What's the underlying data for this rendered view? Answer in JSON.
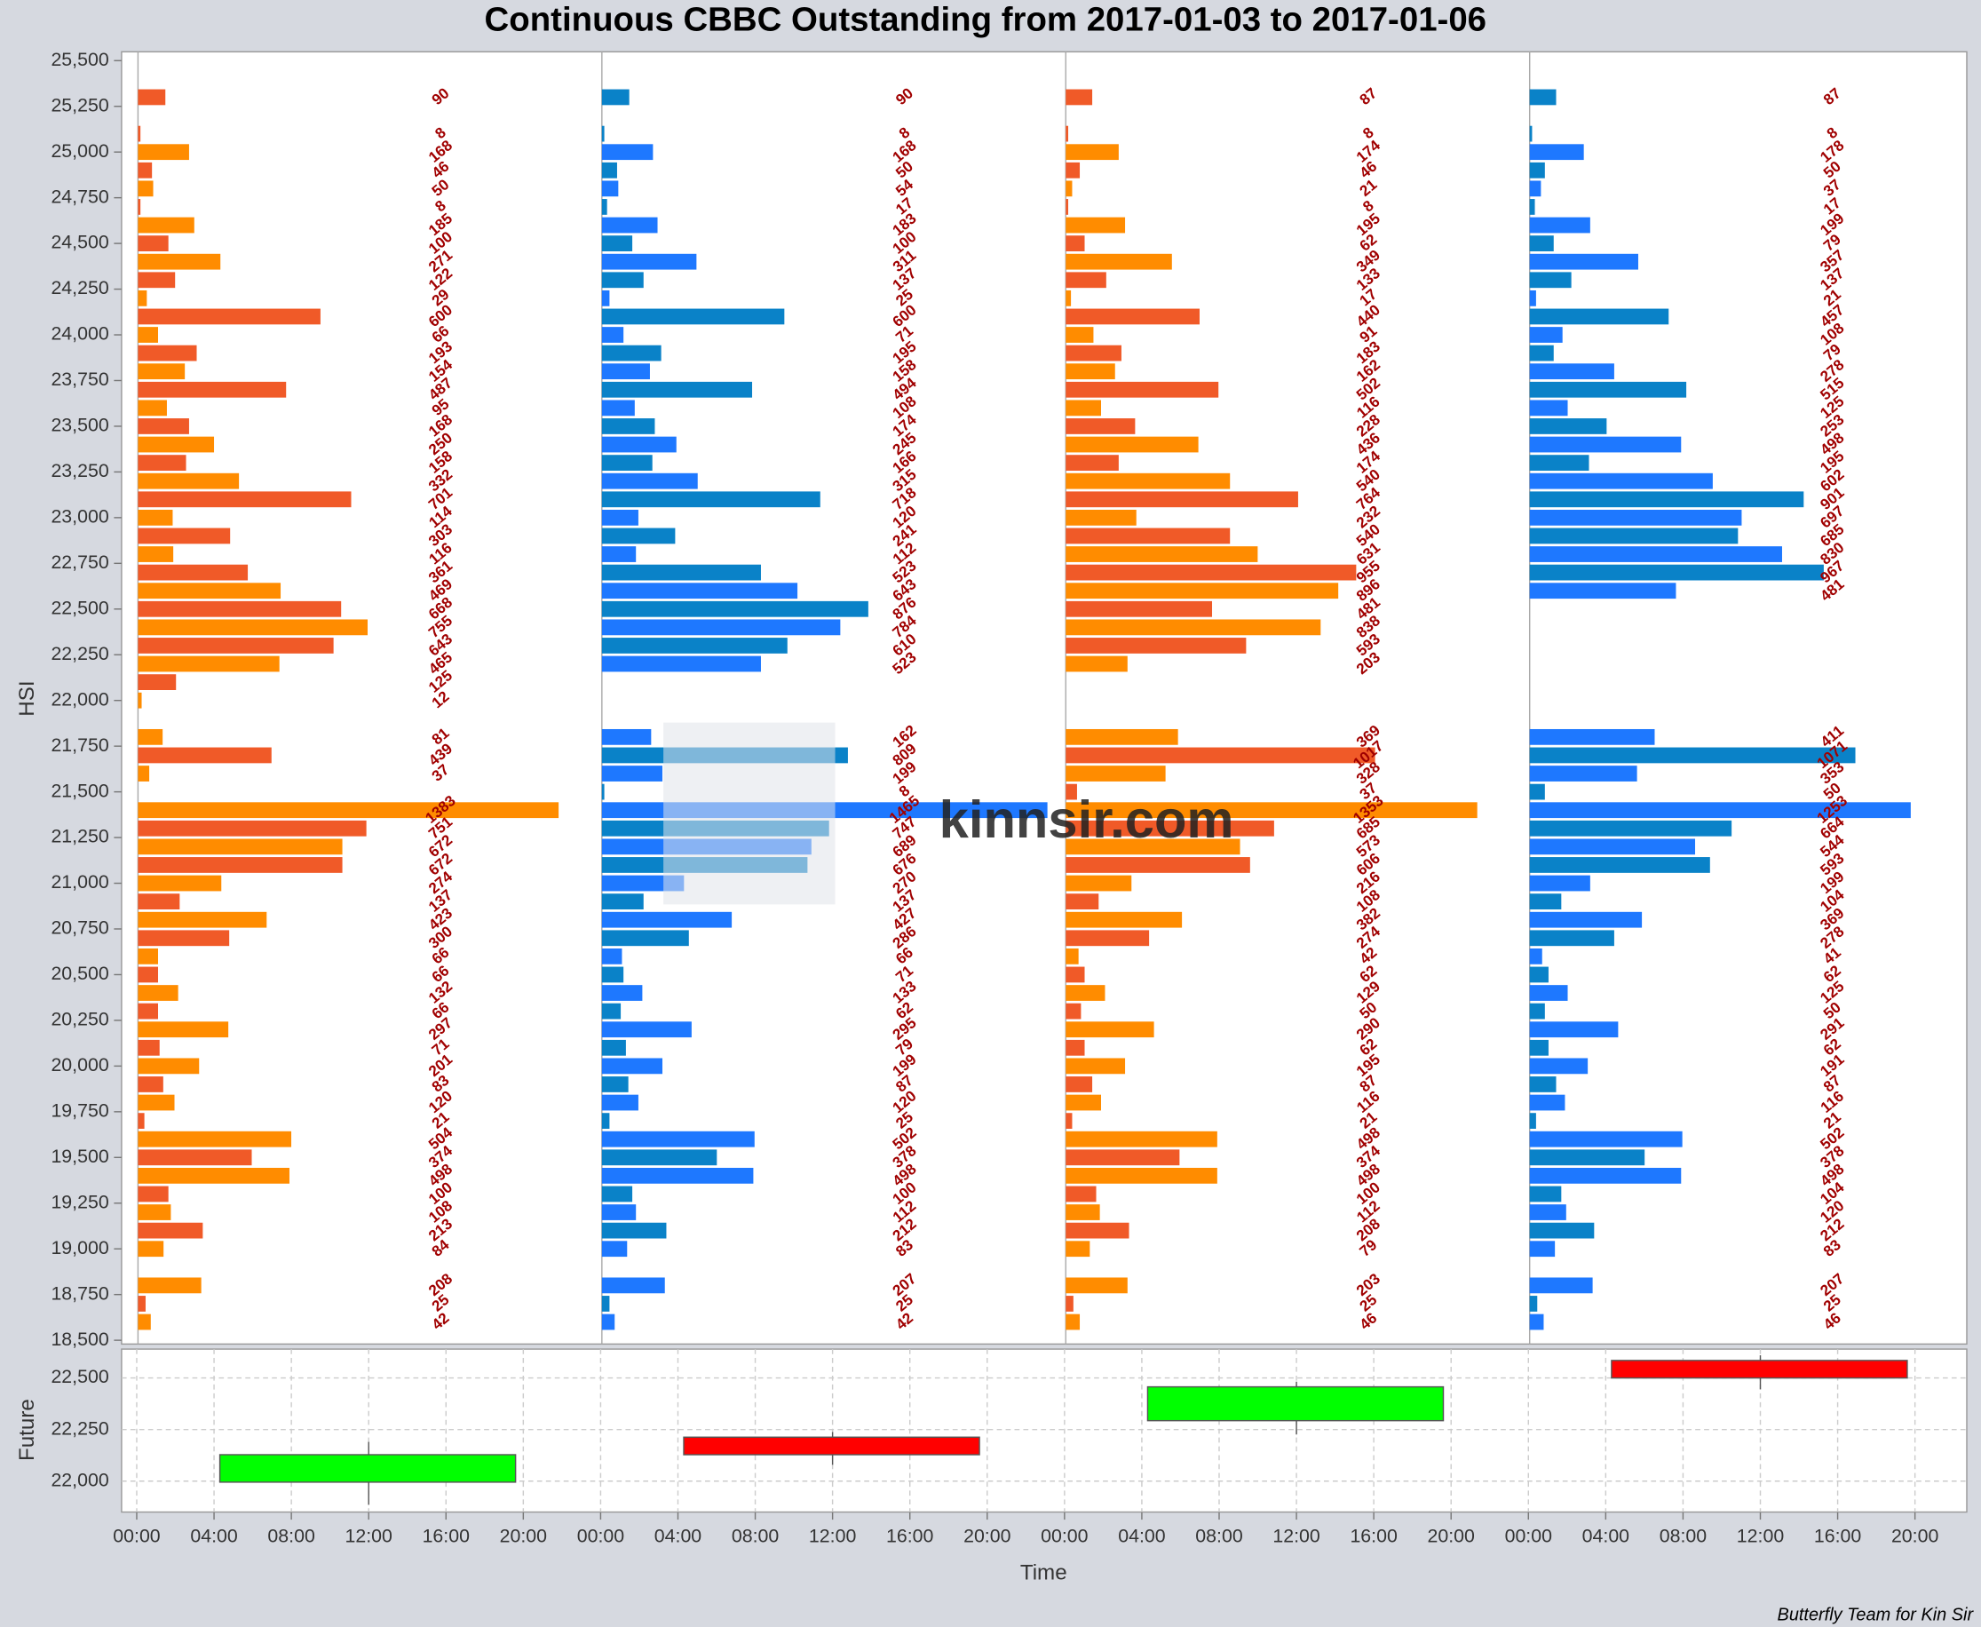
{
  "chart_data": [
    {
      "type": "bar",
      "orientation": "horizontal",
      "title": "Continuous CBBC Outstanding from 2017-01-03 to 2017-01-06",
      "y_label": "HSI",
      "categories": [
        25300,
        25200,
        25100,
        25000,
        24900,
        24800,
        24700,
        24600,
        24500,
        24400,
        24300,
        24200,
        24100,
        24000,
        23900,
        23800,
        23700,
        23600,
        23500,
        23400,
        23300,
        23200,
        23100,
        23000,
        22900,
        22800,
        22700,
        22600,
        22500,
        22400,
        22300,
        22200,
        22100,
        22000,
        21900,
        21800,
        21700,
        21600,
        21500,
        21400,
        21300,
        21200,
        21100,
        21000,
        20900,
        20800,
        20700,
        20600,
        20500,
        20400,
        20300,
        20200,
        20100,
        20000,
        19900,
        19800,
        19700,
        19600,
        19500,
        19400,
        19300,
        19200,
        19100,
        19000,
        18900,
        18800,
        18700,
        18600
      ],
      "ylim": [
        18500,
        25500
      ],
      "yticks": [
        {
          "value": 18500,
          "label": "18,500"
        },
        {
          "value": 18750,
          "label": "18,750"
        },
        {
          "value": 19000,
          "label": "19,000"
        },
        {
          "value": 19250,
          "label": "19,250"
        },
        {
          "value": 19500,
          "label": "19,500"
        },
        {
          "value": 19750,
          "label": "19,750"
        },
        {
          "value": 20000,
          "label": "20,000"
        },
        {
          "value": 20250,
          "label": "20,250"
        },
        {
          "value": 20500,
          "label": "20,500"
        },
        {
          "value": 20750,
          "label": "20,750"
        },
        {
          "value": 21000,
          "label": "21,000"
        },
        {
          "value": 21250,
          "label": "21,250"
        },
        {
          "value": 21500,
          "label": "21,500"
        },
        {
          "value": 21750,
          "label": "21,750"
        },
        {
          "value": 22000,
          "label": "22,000"
        },
        {
          "value": 22250,
          "label": "22,250"
        },
        {
          "value": 22500,
          "label": "22,500"
        },
        {
          "value": 22750,
          "label": "22,750"
        },
        {
          "value": 23000,
          "label": "23,000"
        },
        {
          "value": 23250,
          "label": "23,250"
        },
        {
          "value": 23500,
          "label": "23,500"
        },
        {
          "value": 23750,
          "label": "23,750"
        },
        {
          "value": 24000,
          "label": "24,000"
        },
        {
          "value": 24250,
          "label": "24,250"
        },
        {
          "value": 24500,
          "label": "24,500"
        },
        {
          "value": 24750,
          "label": "24,750"
        },
        {
          "value": 25000,
          "label": "25,000"
        },
        {
          "value": 25250,
          "label": "25,250"
        },
        {
          "value": 25500,
          "label": "25,500"
        }
      ],
      "label_color": "#a00000",
      "panels": [
        {
          "colors": [
            "#f05a28",
            "#ff8c00"
          ],
          "values": [
            90,
            null,
            8,
            168,
            46,
            50,
            8,
            185,
            100,
            271,
            122,
            29,
            600,
            66,
            193,
            154,
            487,
            95,
            168,
            250,
            158,
            332,
            701,
            114,
            303,
            116,
            361,
            469,
            668,
            755,
            643,
            465,
            125,
            12,
            null,
            81,
            439,
            37,
            null,
            1383,
            751,
            672,
            672,
            274,
            137,
            423,
            300,
            66,
            66,
            132,
            66,
            297,
            71,
            201,
            83,
            120,
            21,
            504,
            374,
            498,
            100,
            108,
            213,
            84,
            null,
            208,
            25,
            42
          ]
        },
        {
          "colors": [
            "#0a82c8",
            "#1e78ff"
          ],
          "values": [
            90,
            null,
            8,
            168,
            50,
            54,
            17,
            183,
            100,
            311,
            137,
            25,
            600,
            71,
            195,
            158,
            494,
            108,
            174,
            245,
            166,
            315,
            718,
            120,
            241,
            112,
            523,
            643,
            876,
            784,
            610,
            523,
            null,
            null,
            null,
            162,
            809,
            199,
            8,
            1465,
            747,
            689,
            676,
            270,
            137,
            427,
            286,
            66,
            71,
            133,
            62,
            295,
            79,
            199,
            87,
            120,
            25,
            502,
            378,
            498,
            100,
            112,
            212,
            83,
            null,
            207,
            25,
            42
          ]
        },
        {
          "colors": [
            "#f05a28",
            "#ff8c00"
          ],
          "values": [
            87,
            null,
            8,
            174,
            46,
            21,
            8,
            195,
            62,
            349,
            133,
            17,
            440,
            91,
            183,
            162,
            502,
            116,
            228,
            436,
            174,
            540,
            764,
            232,
            540,
            631,
            955,
            896,
            481,
            838,
            593,
            203,
            null,
            null,
            null,
            369,
            1017,
            328,
            37,
            1353,
            685,
            573,
            606,
            216,
            108,
            382,
            274,
            42,
            62,
            129,
            50,
            290,
            62,
            195,
            87,
            116,
            21,
            498,
            374,
            498,
            100,
            112,
            208,
            79,
            null,
            203,
            25,
            46
          ]
        },
        {
          "colors": [
            "#0a82c8",
            "#1e78ff"
          ],
          "values": [
            87,
            null,
            8,
            178,
            50,
            37,
            17,
            199,
            79,
            357,
            137,
            21,
            457,
            108,
            79,
            278,
            515,
            125,
            253,
            498,
            195,
            602,
            901,
            697,
            685,
            830,
            967,
            481,
            null,
            null,
            null,
            null,
            null,
            null,
            null,
            411,
            1071,
            353,
            50,
            1253,
            664,
            544,
            593,
            199,
            104,
            369,
            278,
            41,
            62,
            125,
            50,
            291,
            62,
            191,
            87,
            116,
            21,
            502,
            378,
            498,
            104,
            120,
            212,
            83,
            null,
            207,
            25,
            46
          ]
        }
      ]
    },
    {
      "type": "candlestick",
      "y_label": "Future",
      "x_label": "Time",
      "ylim": [
        21850,
        22640
      ],
      "yticks": [
        {
          "value": 22000,
          "label": "22,000"
        },
        {
          "value": 22250,
          "label": "22,250"
        },
        {
          "value": 22500,
          "label": "22,500"
        }
      ],
      "xlim": [
        0,
        24
      ],
      "xticks": [
        {
          "value": 0,
          "label": "00:00"
        },
        {
          "value": 4,
          "label": "04:00"
        },
        {
          "value": 8,
          "label": "08:00"
        },
        {
          "value": 12,
          "label": "12:00"
        },
        {
          "value": 16,
          "label": "16:00"
        },
        {
          "value": 20,
          "label": "20:00"
        }
      ],
      "up_color": "#00ff00",
      "down_color": "#ff0000",
      "grid": true,
      "candles": [
        {
          "open": 21995,
          "high": 22190,
          "low": 21885,
          "close": 22128
        },
        {
          "open": 22213,
          "high": 22238,
          "low": 22079,
          "close": 22128
        },
        {
          "open": 22293,
          "high": 22482,
          "low": 22226,
          "close": 22457
        },
        {
          "open": 22585,
          "high": 22610,
          "low": 22445,
          "close": 22500
        }
      ]
    }
  ],
  "watermark": "kinnsir.com",
  "footer": "Butterfly Team for Kin Sir"
}
